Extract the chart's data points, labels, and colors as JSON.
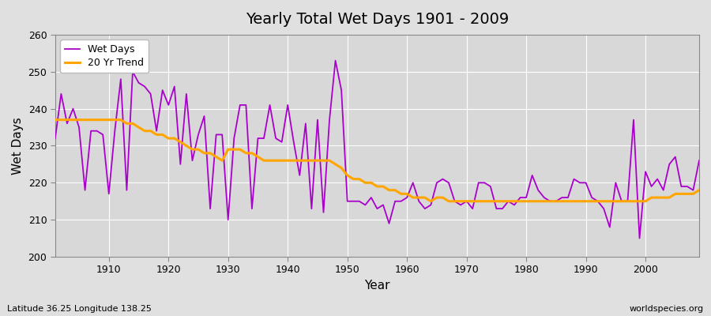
{
  "title": "Yearly Total Wet Days 1901 - 2009",
  "xlabel": "Year",
  "ylabel": "Wet Days",
  "lat_label": "Latitude 36.25 Longitude 138.25",
  "watermark": "worldspecies.org",
  "wet_days_color": "#aa00cc",
  "trend_color": "#FFA500",
  "bg_color": "#e0e0e0",
  "plot_bg_color": "#d8d8d8",
  "ylim": [
    200,
    260
  ],
  "yticks": [
    200,
    210,
    220,
    230,
    240,
    250,
    260
  ],
  "years": [
    1901,
    1902,
    1903,
    1904,
    1905,
    1906,
    1907,
    1908,
    1909,
    1910,
    1911,
    1912,
    1913,
    1914,
    1915,
    1916,
    1917,
    1918,
    1919,
    1920,
    1921,
    1922,
    1923,
    1924,
    1925,
    1926,
    1927,
    1928,
    1929,
    1930,
    1931,
    1932,
    1933,
    1934,
    1935,
    1936,
    1937,
    1938,
    1939,
    1940,
    1941,
    1942,
    1943,
    1944,
    1945,
    1946,
    1947,
    1948,
    1949,
    1950,
    1951,
    1952,
    1953,
    1954,
    1955,
    1956,
    1957,
    1958,
    1959,
    1960,
    1961,
    1962,
    1963,
    1964,
    1965,
    1966,
    1967,
    1968,
    1969,
    1970,
    1971,
    1972,
    1973,
    1974,
    1975,
    1976,
    1977,
    1978,
    1979,
    1980,
    1981,
    1982,
    1983,
    1984,
    1985,
    1986,
    1987,
    1988,
    1989,
    1990,
    1991,
    1992,
    1993,
    1994,
    1995,
    1996,
    1997,
    1998,
    1999,
    2000,
    2001,
    2002,
    2003,
    2004,
    2005,
    2006,
    2007,
    2008,
    2009
  ],
  "wet_days": [
    232,
    244,
    236,
    240,
    235,
    218,
    234,
    234,
    233,
    217,
    234,
    248,
    218,
    250,
    247,
    246,
    244,
    234,
    245,
    241,
    246,
    225,
    244,
    226,
    233,
    238,
    213,
    233,
    233,
    210,
    232,
    241,
    241,
    213,
    232,
    232,
    241,
    232,
    231,
    241,
    231,
    222,
    236,
    213,
    237,
    212,
    237,
    253,
    245,
    215,
    215,
    215,
    214,
    216,
    213,
    214,
    209,
    215,
    215,
    216,
    220,
    215,
    213,
    214,
    220,
    221,
    220,
    215,
    214,
    215,
    213,
    220,
    220,
    219,
    213,
    213,
    215,
    214,
    216,
    216,
    222,
    218,
    216,
    215,
    215,
    216,
    216,
    221,
    220,
    220,
    216,
    215,
    213,
    208,
    220,
    215,
    215,
    237,
    205,
    223,
    219,
    221,
    218,
    225,
    227,
    219,
    219,
    218,
    226
  ],
  "trend": [
    237,
    237,
    237,
    237,
    237,
    237,
    237,
    237,
    237,
    237,
    237,
    237,
    236,
    236,
    235,
    234,
    234,
    233,
    233,
    232,
    232,
    231,
    230,
    229,
    229,
    228,
    228,
    227,
    226,
    229,
    229,
    229,
    228,
    228,
    227,
    226,
    226,
    226,
    226,
    226,
    226,
    226,
    226,
    226,
    226,
    226,
    226,
    225,
    224,
    222,
    221,
    221,
    220,
    220,
    219,
    219,
    218,
    218,
    217,
    217,
    216,
    216,
    216,
    215,
    216,
    216,
    215,
    215,
    215,
    215,
    215,
    215,
    215,
    215,
    215,
    215,
    215,
    215,
    215,
    215,
    215,
    215,
    215,
    215,
    215,
    215,
    215,
    215,
    215,
    215,
    215,
    215,
    215,
    215,
    215,
    215,
    215,
    215,
    215,
    215,
    216,
    216,
    216,
    216,
    217,
    217,
    217,
    217,
    218
  ]
}
